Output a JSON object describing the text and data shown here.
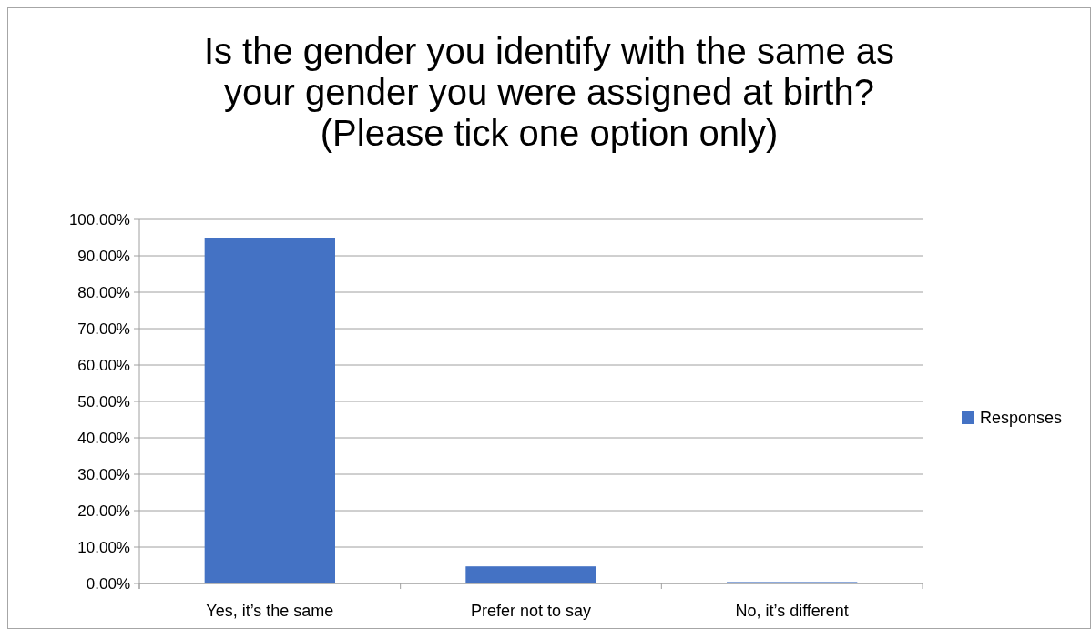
{
  "chart_data": {
    "type": "bar",
    "title": "Is the gender you identify with the same as your gender you were assigned at birth? (Please tick one option only)",
    "categories": [
      "Yes, it’s the same",
      "Prefer not to say",
      "No, it’s different"
    ],
    "series": [
      {
        "name": "Responses",
        "color": "#4472c4",
        "values": [
          94.9,
          4.7,
          0.4
        ]
      }
    ],
    "ylim": [
      0,
      100
    ],
    "yticks": [
      {
        "value": 0,
        "label": "0.00%"
      },
      {
        "value": 10,
        "label": "10.00%"
      },
      {
        "value": 20,
        "label": "20.00%"
      },
      {
        "value": 30,
        "label": "30.00%"
      },
      {
        "value": 40,
        "label": "40.00%"
      },
      {
        "value": 50,
        "label": "50.00%"
      },
      {
        "value": 60,
        "label": "60.00%"
      },
      {
        "value": 70,
        "label": "70.00%"
      },
      {
        "value": 80,
        "label": "80.00%"
      },
      {
        "value": 90,
        "label": "90.00%"
      },
      {
        "value": 100,
        "label": "100.00%"
      }
    ],
    "grid": "y",
    "legend": "right"
  }
}
